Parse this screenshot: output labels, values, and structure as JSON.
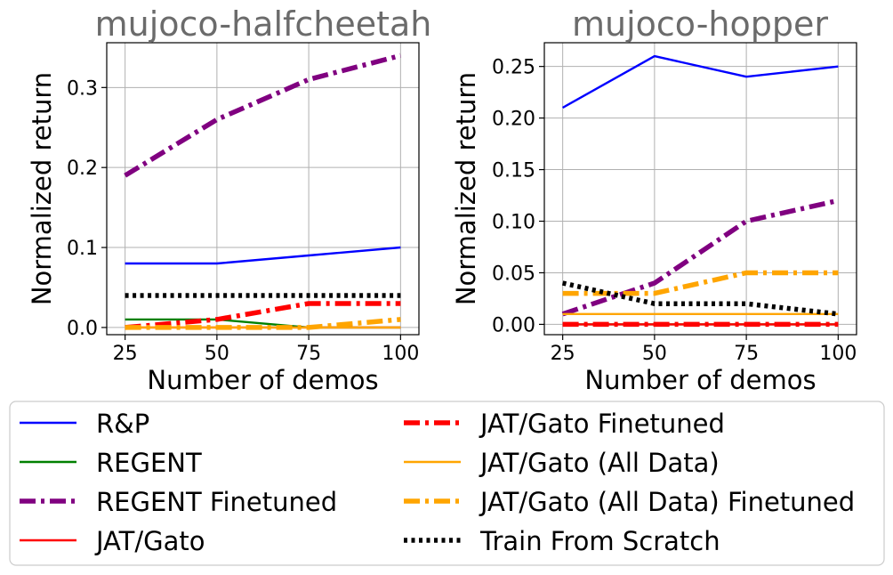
{
  "chart_data": [
    {
      "type": "line",
      "title": "mujoco-halfcheetah",
      "xlabel": "Number of demos",
      "ylabel": "Normalized return",
      "x": [
        25,
        50,
        75,
        100
      ],
      "xlim": [
        20,
        105
      ],
      "ylim": [
        -0.009,
        0.356
      ],
      "yticks": [
        0.0,
        0.1,
        0.2,
        0.3
      ],
      "ytick_labels": [
        "0.0",
        "0.1",
        "0.2",
        "0.3"
      ],
      "xtick_labels": [
        "25",
        "50",
        "75",
        "100"
      ],
      "grid": true,
      "series": [
        {
          "name": "R&P",
          "values": [
            0.08,
            0.08,
            0.09,
            0.1
          ]
        },
        {
          "name": "REGENT",
          "values": [
            0.01,
            0.01,
            0.0,
            0.0
          ]
        },
        {
          "name": "REGENT Finetuned",
          "values": [
            0.19,
            0.26,
            0.31,
            0.34
          ]
        },
        {
          "name": "JAT/Gato",
          "values": [
            0.0,
            0.0,
            0.0,
            0.0
          ]
        },
        {
          "name": "JAT/Gato Finetuned",
          "values": [
            0.0,
            0.01,
            0.03,
            0.03
          ]
        },
        {
          "name": "JAT/Gato (All Data)",
          "values": [
            0.0,
            0.0,
            0.0,
            0.0
          ]
        },
        {
          "name": "JAT/Gato (All Data) Finetuned",
          "values": [
            0.0,
            0.0,
            0.0,
            0.01
          ]
        },
        {
          "name": "Train From Scratch",
          "values": [
            0.04,
            0.04,
            0.04,
            0.04
          ]
        }
      ]
    },
    {
      "type": "line",
      "title": "mujoco-hopper",
      "xlabel": "Number of demos",
      "ylabel": "Normalized return",
      "x": [
        25,
        50,
        75,
        100
      ],
      "xlim": [
        20,
        105
      ],
      "ylim": [
        -0.01,
        0.273
      ],
      "yticks": [
        0.0,
        0.05,
        0.1,
        0.15,
        0.2,
        0.25
      ],
      "ytick_labels": [
        "0.00",
        "0.05",
        "0.10",
        "0.15",
        "0.20",
        "0.25"
      ],
      "xtick_labels": [
        "25",
        "50",
        "75",
        "100"
      ],
      "grid": true,
      "series": [
        {
          "name": "R&P",
          "values": [
            0.21,
            0.26,
            0.24,
            0.25
          ]
        },
        {
          "name": "REGENT",
          "values": [
            0.0,
            0.0,
            0.0,
            0.0
          ]
        },
        {
          "name": "REGENT Finetuned",
          "values": [
            0.01,
            0.04,
            0.1,
            0.12
          ]
        },
        {
          "name": "JAT/Gato",
          "values": [
            0.0,
            0.0,
            0.0,
            0.0
          ]
        },
        {
          "name": "JAT/Gato Finetuned",
          "values": [
            0.0,
            0.0,
            0.0,
            0.0
          ]
        },
        {
          "name": "JAT/Gato (All Data)",
          "values": [
            0.01,
            0.01,
            0.01,
            0.01
          ]
        },
        {
          "name": "JAT/Gato (All Data) Finetuned",
          "values": [
            0.03,
            0.03,
            0.05,
            0.05
          ]
        },
        {
          "name": "Train From Scratch",
          "values": [
            0.04,
            0.02,
            0.02,
            0.01
          ]
        }
      ]
    }
  ],
  "legend": {
    "placement": "bottom",
    "entries": [
      {
        "label": "R&P",
        "color": "#0000ff",
        "style": "solid",
        "weight": "thin"
      },
      {
        "label": "REGENT",
        "color": "#008000",
        "style": "solid",
        "weight": "thin"
      },
      {
        "label": "REGENT Finetuned",
        "color": "#800080",
        "style": "dashdot",
        "weight": "thick"
      },
      {
        "label": "JAT/Gato",
        "color": "#ff0000",
        "style": "solid",
        "weight": "thin"
      },
      {
        "label": "JAT/Gato Finetuned",
        "color": "#ff0000",
        "style": "dashdot",
        "weight": "thick"
      },
      {
        "label": "JAT/Gato (All Data)",
        "color": "#ffa500",
        "style": "solid",
        "weight": "thin"
      },
      {
        "label": "JAT/Gato (All Data) Finetuned",
        "color": "#ffa500",
        "style": "dashdot",
        "weight": "thick"
      },
      {
        "label": "Train From Scratch",
        "color": "#000000",
        "style": "dotted",
        "weight": "thick"
      }
    ]
  }
}
